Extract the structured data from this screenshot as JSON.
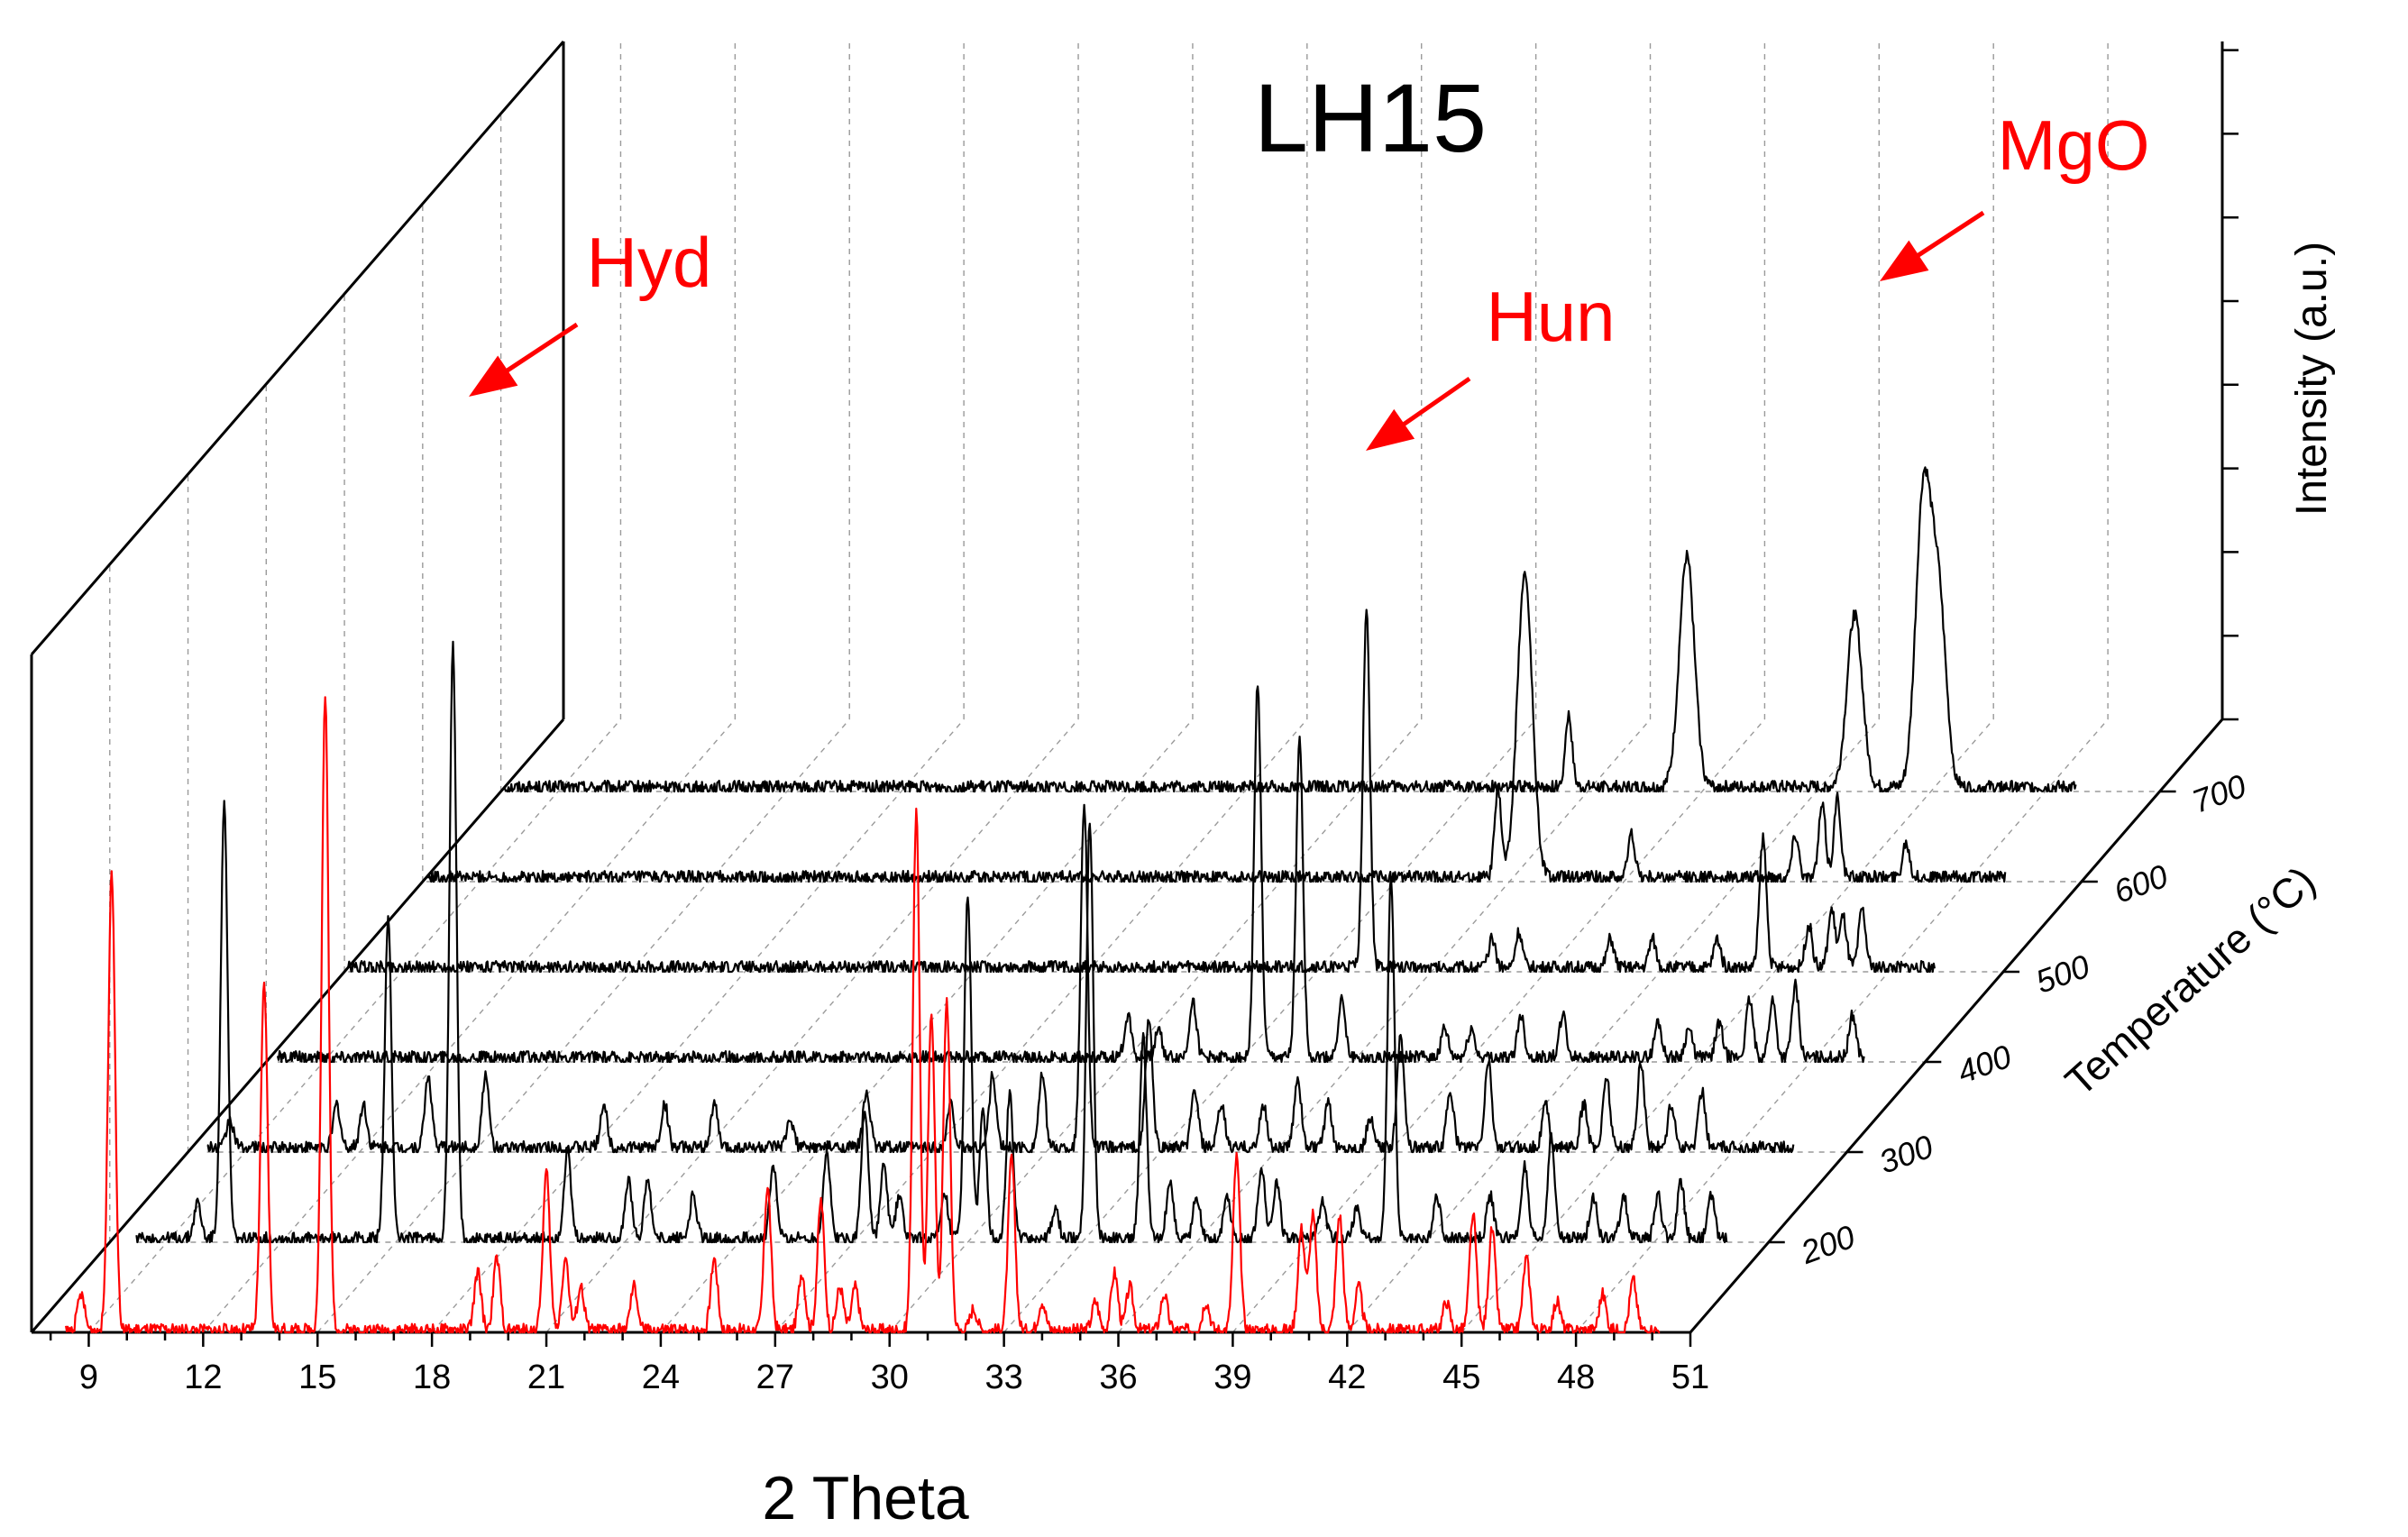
{
  "chart_data": {
    "type": "line",
    "title": "LH15",
    "xlabel": "2 Theta",
    "ylabel": "Intensity (a.u.)",
    "zlabel": "Temperature (°C)",
    "xlim": [
      7.5,
      51
    ],
    "x_ticks": [
      "9",
      "12",
      "15",
      "18",
      "21",
      "24",
      "27",
      "30",
      "33",
      "36",
      "39",
      "42",
      "45",
      "48",
      "51"
    ],
    "temperature_ticks": [
      "200",
      "300",
      "400",
      "500",
      "600",
      "700"
    ],
    "grid": true,
    "annotations": [
      {
        "label": "Hyd",
        "color": "#ff0000"
      },
      {
        "label": "Hun",
        "color": "#ff0000"
      },
      {
        "label": "MgO",
        "color": "#ff0000"
      }
    ],
    "series": [
      {
        "temperature": 100,
        "color": "#ff0000",
        "x_range": [
          8.4,
          50.2
        ],
        "baseline": 0.15,
        "peaks": [
          [
            8.8,
            2.5
          ],
          [
            9.6,
            32
          ],
          [
            13.6,
            24
          ],
          [
            15.2,
            44
          ],
          [
            19.2,
            4
          ],
          [
            19.7,
            5
          ],
          [
            21.0,
            11
          ],
          [
            21.5,
            5
          ],
          [
            21.9,
            3
          ],
          [
            23.3,
            3
          ],
          [
            25.4,
            5
          ],
          [
            26.8,
            10
          ],
          [
            27.7,
            4
          ],
          [
            28.2,
            9
          ],
          [
            28.7,
            3
          ],
          [
            29.1,
            3
          ],
          [
            30.7,
            36
          ],
          [
            31.1,
            22
          ],
          [
            31.5,
            23
          ],
          [
            32.2,
            1.5
          ],
          [
            33.2,
            12
          ],
          [
            34.0,
            2
          ],
          [
            35.4,
            2
          ],
          [
            35.9,
            4
          ],
          [
            36.3,
            3
          ],
          [
            37.2,
            2.5
          ],
          [
            38.3,
            2
          ],
          [
            39.1,
            12
          ],
          [
            40.8,
            7
          ],
          [
            41.1,
            8
          ],
          [
            41.8,
            8
          ],
          [
            42.3,
            3
          ],
          [
            44.6,
            2
          ],
          [
            45.3,
            8
          ],
          [
            45.8,
            7
          ],
          [
            46.7,
            5
          ],
          [
            47.5,
            2
          ],
          [
            48.7,
            2.5
          ],
          [
            49.5,
            3.5
          ]
        ]
      },
      {
        "temperature": 200,
        "color": "#000000",
        "x_range": [
          8.2,
          49.9
        ],
        "baseline": 0.25,
        "peaks": [
          [
            9.8,
            2.5
          ],
          [
            10.5,
            30
          ],
          [
            14.8,
            22
          ],
          [
            16.5,
            41
          ],
          [
            19.5,
            6
          ],
          [
            21.1,
            4
          ],
          [
            21.6,
            4
          ],
          [
            22.8,
            3
          ],
          [
            24.9,
            5
          ],
          [
            26.3,
            6
          ],
          [
            27.3,
            9
          ],
          [
            27.8,
            5
          ],
          [
            28.2,
            3
          ],
          [
            29.4,
            3
          ],
          [
            30.0,
            24
          ],
          [
            30.4,
            9
          ],
          [
            31.1,
            10
          ],
          [
            32.3,
            2
          ],
          [
            33.2,
            29
          ],
          [
            34.6,
            14
          ],
          [
            35.3,
            4
          ],
          [
            36.0,
            3
          ],
          [
            36.8,
            3
          ],
          [
            37.7,
            5
          ],
          [
            38.1,
            4
          ],
          [
            39.3,
            2.5
          ],
          [
            40.2,
            2
          ],
          [
            41.1,
            25
          ],
          [
            42.3,
            3
          ],
          [
            43.7,
            3
          ],
          [
            44.6,
            5
          ],
          [
            45.3,
            7
          ],
          [
            46.4,
            3
          ],
          [
            47.2,
            3
          ],
          [
            48.1,
            3
          ],
          [
            48.7,
            4
          ],
          [
            49.5,
            3
          ]
        ]
      },
      {
        "temperature": 300,
        "color": "#000000",
        "x_range": [
          8.0,
          49.6
        ],
        "baseline": 0.3,
        "peaks": [
          [
            8.6,
            2
          ],
          [
            11.4,
            3
          ],
          [
            12.1,
            3
          ],
          [
            13.8,
            5
          ],
          [
            15.3,
            5
          ],
          [
            18.4,
            3
          ],
          [
            20.0,
            3
          ],
          [
            21.3,
            3
          ],
          [
            23.3,
            2
          ],
          [
            25.3,
            4
          ],
          [
            27.5,
            3
          ],
          [
            28.6,
            5
          ],
          [
            29.9,
            5
          ],
          [
            31.0,
            24
          ],
          [
            32.7,
            9
          ],
          [
            33.9,
            4
          ],
          [
            34.6,
            3
          ],
          [
            35.7,
            3
          ],
          [
            36.6,
            5
          ],
          [
            37.4,
            3
          ],
          [
            38.5,
            2
          ],
          [
            39.3,
            8
          ],
          [
            40.6,
            4
          ],
          [
            41.6,
            6
          ],
          [
            43.1,
            3
          ],
          [
            44.1,
            3
          ],
          [
            44.7,
            5
          ],
          [
            45.6,
            6
          ],
          [
            46.4,
            3
          ],
          [
            47.2,
            4
          ]
        ]
      },
      {
        "temperature": 400,
        "color": "#000000",
        "x_range": [
          7.8,
          49.4
        ],
        "baseline": 0.3,
        "peaks": [
          [
            30.1,
            3
          ],
          [
            30.9,
            2
          ],
          [
            31.8,
            4
          ],
          [
            33.5,
            26
          ],
          [
            34.6,
            22
          ],
          [
            35.7,
            4
          ],
          [
            38.4,
            2
          ],
          [
            39.1,
            2
          ],
          [
            40.4,
            3
          ],
          [
            41.5,
            3
          ],
          [
            44.0,
            2.5
          ],
          [
            44.8,
            2
          ],
          [
            45.6,
            2.5
          ],
          [
            46.4,
            4
          ],
          [
            47.0,
            4
          ],
          [
            47.6,
            5
          ],
          [
            49.1,
            3
          ]
        ]
      },
      {
        "temperature": 500,
        "color": "#000000",
        "x_range": [
          7.6,
          49.2
        ],
        "baseline": 0.3,
        "peaks": [
          [
            34.3,
            25
          ],
          [
            37.6,
            2
          ],
          [
            38.3,
            2.5
          ],
          [
            40.7,
            2
          ],
          [
            41.8,
            2
          ],
          [
            43.5,
            2
          ],
          [
            44.7,
            9
          ],
          [
            45.9,
            3
          ],
          [
            46.5,
            4
          ],
          [
            46.8,
            3.5
          ],
          [
            47.3,
            4
          ]
        ]
      },
      {
        "temperature": 600,
        "color": "#000000",
        "x_range": [
          7.6,
          49.0
        ],
        "baseline": 0.3,
        "peaks": [
          [
            35.7,
            6
          ],
          [
            36.4,
            21
          ],
          [
            39.2,
            3
          ],
          [
            43.5,
            3
          ],
          [
            44.2,
            5
          ],
          [
            44.6,
            5.5
          ],
          [
            46.4,
            2.5
          ]
        ]
      },
      {
        "temperature": 700,
        "color": "#000000",
        "x_range": [
          7.6,
          48.8
        ],
        "baseline": 0.3,
        "peaks": [
          [
            35.5,
            5
          ],
          [
            38.6,
            16
          ],
          [
            43.0,
            12
          ],
          [
            44.8,
            20
          ],
          [
            45.2,
            13
          ]
        ]
      }
    ]
  }
}
